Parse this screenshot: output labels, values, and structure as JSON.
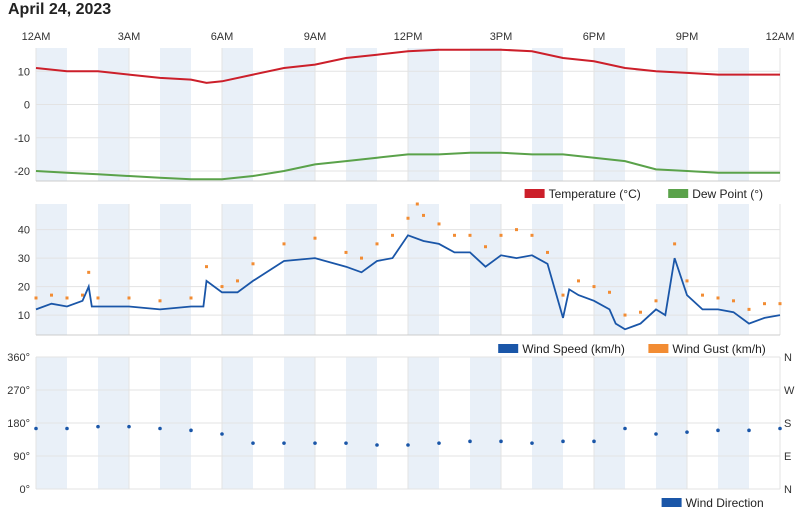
{
  "page": {
    "title": "April 24, 2023"
  },
  "colors": {
    "temperature": "#cc1f2a",
    "dew_point": "#5aa24a",
    "wind_speed": "#1a56a8",
    "wind_gust": "#f28c33",
    "wind_direction": "#1a56a8",
    "band": "#e9f0f8",
    "grid": "#e3e3e3"
  },
  "chart_data": [
    {
      "type": "line",
      "title": "",
      "x_tick_labels": [
        "12AM",
        "3AM",
        "6AM",
        "9AM",
        "12PM",
        "3PM",
        "6PM",
        "9PM",
        "12AM"
      ],
      "x_range_hours": [
        0,
        24
      ],
      "ylim": [
        -23,
        17
      ],
      "y_ticks": [
        10,
        0,
        -10,
        -20
      ],
      "grid": true,
      "legend_position": "bottom-right",
      "series": [
        {
          "name": "Temperature (°C)",
          "color": "#cc1f2a",
          "x": [
            0,
            1,
            2,
            3,
            4,
            5,
            5.5,
            6,
            7,
            8,
            9,
            10,
            11,
            12,
            13,
            14,
            15,
            16,
            17,
            18,
            19,
            20,
            21,
            22,
            23,
            24
          ],
          "y": [
            11,
            10,
            10,
            9,
            8,
            7.5,
            6.5,
            7,
            9,
            11,
            12,
            14,
            15,
            16,
            16.5,
            16.5,
            16.5,
            16,
            14,
            13,
            11,
            10,
            9.5,
            9,
            9,
            9
          ]
        },
        {
          "name": "Dew Point (°)",
          "color": "#5aa24a",
          "x": [
            0,
            1,
            2,
            3,
            4,
            5,
            6,
            7,
            8,
            9,
            10,
            11,
            12,
            13,
            14,
            15,
            16,
            17,
            18,
            19,
            20,
            21,
            22,
            23,
            24
          ],
          "y": [
            -20,
            -20.5,
            -21,
            -21.5,
            -22,
            -22.5,
            -22.5,
            -21.5,
            -20,
            -18,
            -17,
            -16,
            -15,
            -15,
            -14.5,
            -14.5,
            -15,
            -15,
            -16,
            -17,
            -19.5,
            -20,
            -20.5,
            -20.5,
            -20.5
          ]
        }
      ]
    },
    {
      "type": "line",
      "title": "",
      "x_range_hours": [
        0,
        24
      ],
      "ylim": [
        3,
        49
      ],
      "y_ticks": [
        40,
        30,
        20,
        10
      ],
      "grid": true,
      "legend_position": "bottom-right",
      "series": [
        {
          "name": "Wind Speed (km/h)",
          "color": "#1a56a8",
          "x": [
            0,
            0.5,
            1,
            1.5,
            1.7,
            1.8,
            2,
            3,
            4,
            5,
            5.4,
            5.5,
            6,
            6.5,
            7,
            8,
            9,
            10,
            10.5,
            11,
            11.5,
            12,
            12.5,
            13,
            13.5,
            14,
            14.5,
            15,
            15.5,
            16,
            16.5,
            17,
            17.2,
            17.5,
            18,
            18.5,
            18.7,
            19,
            19.5,
            20,
            20.3,
            20.6,
            21,
            21.5,
            22,
            22.5,
            23,
            23.5,
            24
          ],
          "y": [
            12,
            14,
            13,
            15,
            20,
            13,
            13,
            13,
            12,
            13,
            13,
            22,
            18,
            18,
            22,
            29,
            30,
            27,
            25,
            29,
            30,
            38,
            36,
            35,
            32,
            32,
            27,
            31,
            30,
            31,
            28,
            9,
            19,
            17,
            15,
            12,
            7,
            5,
            7,
            12,
            10,
            30,
            17,
            12,
            12,
            11,
            7,
            9,
            10
          ]
        },
        {
          "name": "Wind Gust (km/h)",
          "color": "#f28c33",
          "x": [
            0,
            0.5,
            1,
            1.5,
            1.7,
            2,
            3,
            4,
            5,
            5.5,
            6,
            6.5,
            7,
            8,
            9,
            10,
            10.5,
            11,
            11.5,
            12,
            12.3,
            12.5,
            13,
            13.5,
            14,
            14.5,
            15,
            15.5,
            16,
            16.5,
            17,
            17.5,
            18,
            18.5,
            19,
            19.5,
            20,
            20.6,
            21,
            21.5,
            22,
            22.5,
            23,
            23.5,
            24
          ],
          "y": [
            16,
            17,
            16,
            17,
            25,
            16,
            16,
            15,
            16,
            27,
            20,
            22,
            28,
            35,
            37,
            32,
            30,
            35,
            38,
            44,
            49,
            45,
            42,
            38,
            38,
            34,
            38,
            40,
            38,
            32,
            17,
            22,
            20,
            18,
            10,
            11,
            15,
            35,
            22,
            17,
            16,
            15,
            12,
            14,
            14
          ]
        }
      ]
    },
    {
      "type": "scatter",
      "title": "",
      "x_range_hours": [
        0,
        24
      ],
      "ylim": [
        0,
        360
      ],
      "y_ticks": [
        "0°",
        "90°",
        "180°",
        "270°",
        "360°"
      ],
      "y_tick_values": [
        0,
        90,
        180,
        270,
        360
      ],
      "compass_labels": [
        "N",
        "E",
        "S",
        "W",
        "N"
      ],
      "grid": true,
      "legend_position": "bottom-right",
      "series": [
        {
          "name": "Wind Direction",
          "color": "#1a56a8",
          "x": [
            0,
            1,
            2,
            3,
            4,
            5,
            6,
            7,
            8,
            9,
            10,
            11,
            12,
            13,
            14,
            15,
            16,
            17,
            18,
            19,
            20,
            21,
            22,
            23,
            24
          ],
          "y": [
            165,
            165,
            170,
            170,
            165,
            160,
            150,
            125,
            125,
            125,
            125,
            120,
            120,
            125,
            130,
            130,
            125,
            130,
            130,
            165,
            150,
            155,
            160,
            160,
            165
          ]
        }
      ]
    }
  ]
}
